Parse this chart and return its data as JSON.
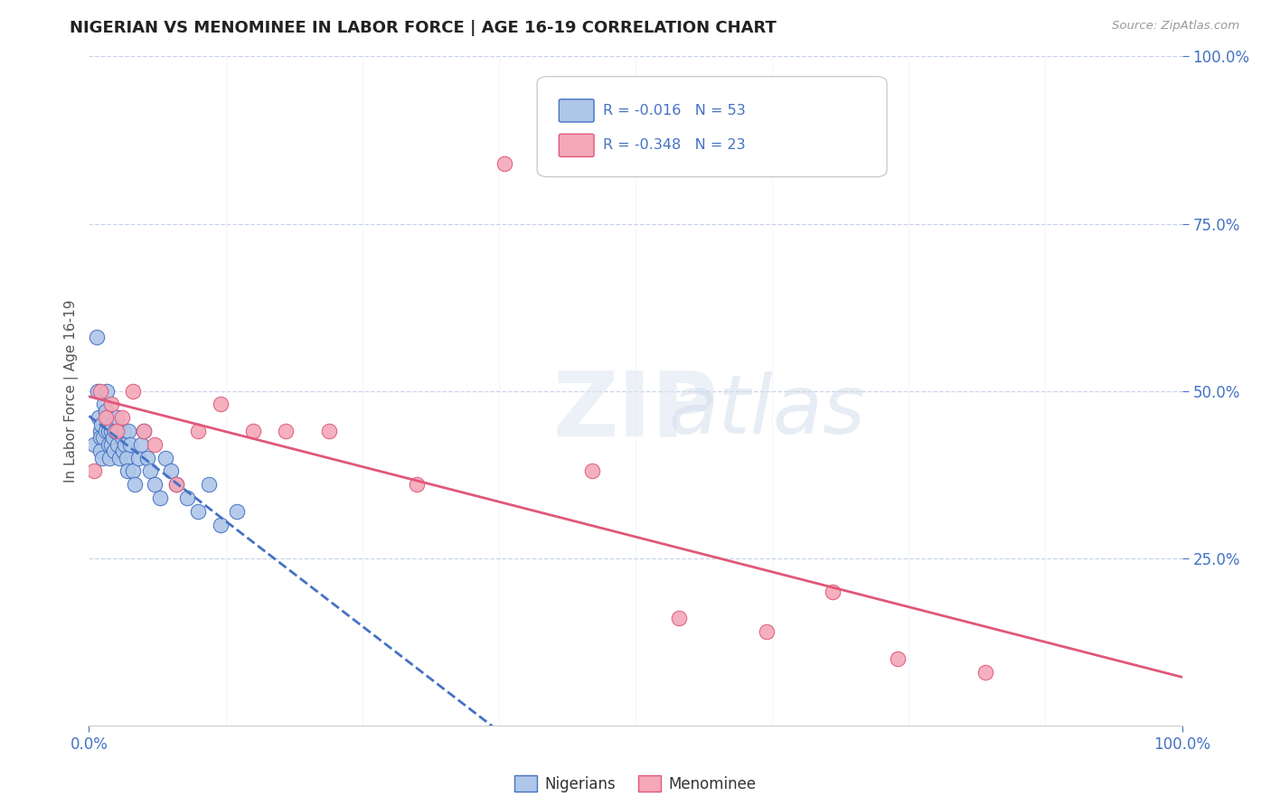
{
  "title": "NIGERIAN VS MENOMINEE IN LABOR FORCE | AGE 16-19 CORRELATION CHART",
  "source": "Source: ZipAtlas.com",
  "ylabel": "In Labor Force | Age 16-19",
  "nigerian_color": "#aec6e8",
  "menominee_color": "#f4a8b8",
  "nigerian_line_color": "#4472c4",
  "menominee_line_color": "#e05878",
  "legend_box_nigerian": "#aec6e8",
  "legend_box_menominee": "#f4a8b8",
  "legend_text_color": "#4472c4",
  "background_color": "#ffffff",
  "grid_color": "#c8d4e8",
  "nigerian_x": [
    0.005,
    0.007,
    0.008,
    0.009,
    0.01,
    0.01,
    0.01,
    0.011,
    0.012,
    0.013,
    0.014,
    0.015,
    0.015,
    0.016,
    0.017,
    0.018,
    0.018,
    0.019,
    0.02,
    0.02,
    0.021,
    0.022,
    0.023,
    0.024,
    0.025,
    0.026,
    0.027,
    0.028,
    0.03,
    0.031,
    0.032,
    0.033,
    0.034,
    0.035,
    0.036,
    0.038,
    0.04,
    0.042,
    0.045,
    0.048,
    0.05,
    0.053,
    0.056,
    0.06,
    0.065,
    0.07,
    0.075,
    0.08,
    0.09,
    0.1,
    0.11,
    0.12,
    0.135
  ],
  "nigerian_y": [
    0.42,
    0.58,
    0.5,
    0.46,
    0.44,
    0.43,
    0.41,
    0.45,
    0.4,
    0.43,
    0.48,
    0.44,
    0.47,
    0.5,
    0.46,
    0.44,
    0.42,
    0.4,
    0.44,
    0.42,
    0.45,
    0.43,
    0.41,
    0.44,
    0.46,
    0.42,
    0.44,
    0.4,
    0.43,
    0.41,
    0.44,
    0.42,
    0.4,
    0.38,
    0.44,
    0.42,
    0.38,
    0.36,
    0.4,
    0.42,
    0.44,
    0.4,
    0.38,
    0.36,
    0.34,
    0.4,
    0.38,
    0.36,
    0.34,
    0.32,
    0.36,
    0.3,
    0.32
  ],
  "menominee_x": [
    0.005,
    0.01,
    0.015,
    0.02,
    0.025,
    0.03,
    0.04,
    0.05,
    0.06,
    0.08,
    0.1,
    0.12,
    0.15,
    0.18,
    0.22,
    0.3,
    0.38,
    0.46,
    0.54,
    0.62,
    0.68,
    0.74,
    0.82
  ],
  "menominee_y": [
    0.38,
    0.5,
    0.46,
    0.48,
    0.44,
    0.46,
    0.5,
    0.44,
    0.42,
    0.36,
    0.44,
    0.48,
    0.44,
    0.44,
    0.44,
    0.36,
    0.84,
    0.38,
    0.16,
    0.14,
    0.2,
    0.1,
    0.08
  ],
  "xlim": [
    0,
    1.0
  ],
  "ylim": [
    0,
    1.0
  ],
  "x_ticks": [
    0.0,
    1.0
  ],
  "x_ticklabels": [
    "0.0%",
    "100.0%"
  ],
  "y_ticks_right": [
    1.0,
    0.75,
    0.5,
    0.25
  ],
  "y_ticklabels_right": [
    "100.0%",
    "75.0%",
    "50.0%",
    "25.0%"
  ],
  "nig_legend_label": "R = -0.016   N = 53",
  "men_legend_label": "R = -0.348   N = 23",
  "bottom_legend_nigerians": "Nigerians",
  "bottom_legend_menominee": "Menominee"
}
